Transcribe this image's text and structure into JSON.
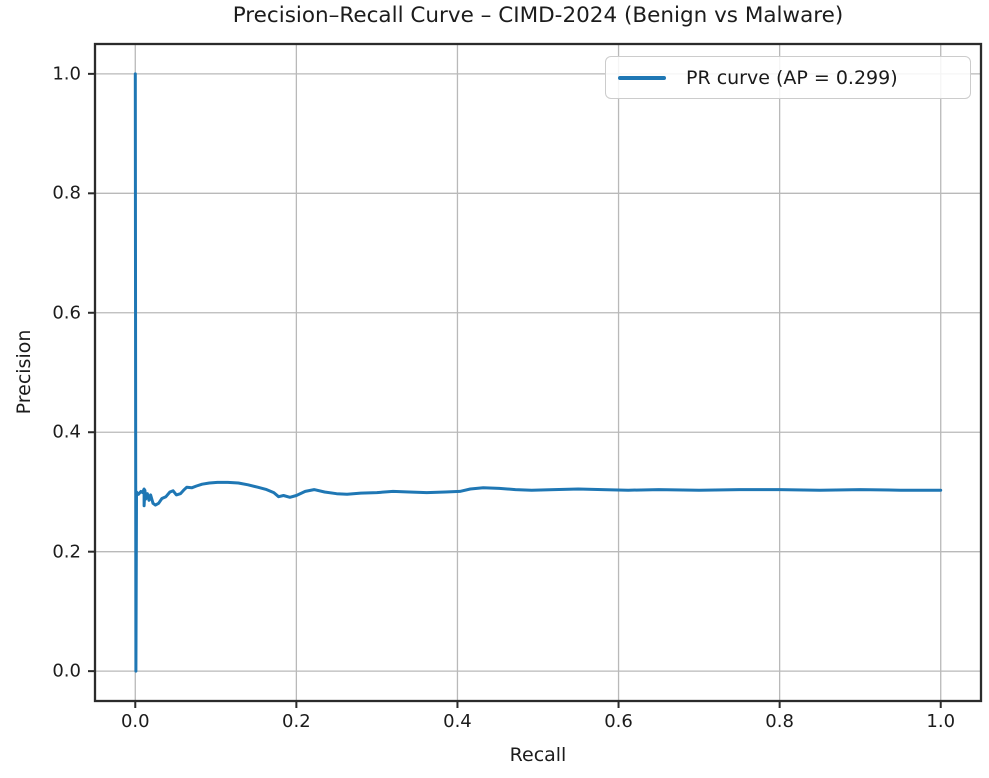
{
  "figure": {
    "title": "Precision–Recall Curve – CIMD-2024 (Benign vs Malware)",
    "xlabel": "Recall",
    "ylabel": "Precision",
    "legend": {
      "label": "PR curve (AP = 0.299)"
    },
    "colors": {
      "line": "#1f77b4",
      "grid": "#b9b9b9",
      "frame": "#2b2b2b",
      "text": "#1c1c1c",
      "legend_border": "#cccccc"
    }
  },
  "chart_data": {
    "type": "line",
    "title": "Precision–Recall Curve – CIMD-2024 (Benign vs Malware)",
    "xlabel": "Recall",
    "ylabel": "Precision",
    "grid": true,
    "legend_position": "upper right",
    "xlim": [
      -0.05,
      1.05
    ],
    "ylim": [
      -0.05,
      1.05
    ],
    "x_ticks": {
      "values": [
        0.0,
        0.2,
        0.4,
        0.6,
        0.8,
        1.0
      ],
      "labels": [
        "0.0",
        "0.2",
        "0.4",
        "0.6",
        "0.8",
        "1.0"
      ]
    },
    "y_ticks": {
      "values": [
        0.0,
        0.2,
        0.4,
        0.6,
        0.8,
        1.0
      ],
      "labels": [
        "0.0",
        "0.2",
        "0.4",
        "0.6",
        "0.8",
        "1.0"
      ]
    },
    "series": [
      {
        "name": "PR curve (AP = 0.299)",
        "average_precision": 0.299,
        "points": [
          [
            0.0,
            1.0
          ],
          [
            0.0008,
            0.0
          ],
          [
            0.0015,
            0.3
          ],
          [
            0.004,
            0.296
          ],
          [
            0.007,
            0.301
          ],
          [
            0.009,
            0.299
          ],
          [
            0.011,
            0.305
          ],
          [
            0.011,
            0.277
          ],
          [
            0.012,
            0.303
          ],
          [
            0.013,
            0.288
          ],
          [
            0.015,
            0.297
          ],
          [
            0.017,
            0.286
          ],
          [
            0.019,
            0.295
          ],
          [
            0.022,
            0.281
          ],
          [
            0.025,
            0.278
          ],
          [
            0.029,
            0.281
          ],
          [
            0.033,
            0.289
          ],
          [
            0.038,
            0.292
          ],
          [
            0.043,
            0.3
          ],
          [
            0.047,
            0.302
          ],
          [
            0.051,
            0.295
          ],
          [
            0.056,
            0.297
          ],
          [
            0.06,
            0.303
          ],
          [
            0.064,
            0.308
          ],
          [
            0.07,
            0.307
          ],
          [
            0.076,
            0.31
          ],
          [
            0.083,
            0.313
          ],
          [
            0.092,
            0.315
          ],
          [
            0.102,
            0.316
          ],
          [
            0.115,
            0.316
          ],
          [
            0.128,
            0.315
          ],
          [
            0.14,
            0.312
          ],
          [
            0.152,
            0.308
          ],
          [
            0.163,
            0.304
          ],
          [
            0.172,
            0.299
          ],
          [
            0.178,
            0.292
          ],
          [
            0.184,
            0.294
          ],
          [
            0.192,
            0.291
          ],
          [
            0.2,
            0.294
          ],
          [
            0.211,
            0.301
          ],
          [
            0.222,
            0.304
          ],
          [
            0.235,
            0.3
          ],
          [
            0.25,
            0.297
          ],
          [
            0.263,
            0.296
          ],
          [
            0.28,
            0.298
          ],
          [
            0.3,
            0.299
          ],
          [
            0.32,
            0.301
          ],
          [
            0.34,
            0.3
          ],
          [
            0.362,
            0.299
          ],
          [
            0.385,
            0.3
          ],
          [
            0.403,
            0.301
          ],
          [
            0.416,
            0.305
          ],
          [
            0.432,
            0.307
          ],
          [
            0.452,
            0.306
          ],
          [
            0.472,
            0.304
          ],
          [
            0.492,
            0.303
          ],
          [
            0.52,
            0.304
          ],
          [
            0.55,
            0.305
          ],
          [
            0.58,
            0.304
          ],
          [
            0.612,
            0.303
          ],
          [
            0.65,
            0.304
          ],
          [
            0.7,
            0.303
          ],
          [
            0.75,
            0.304
          ],
          [
            0.8,
            0.304
          ],
          [
            0.85,
            0.303
          ],
          [
            0.9,
            0.304
          ],
          [
            0.95,
            0.303
          ],
          [
            1.0,
            0.303
          ]
        ]
      }
    ]
  }
}
